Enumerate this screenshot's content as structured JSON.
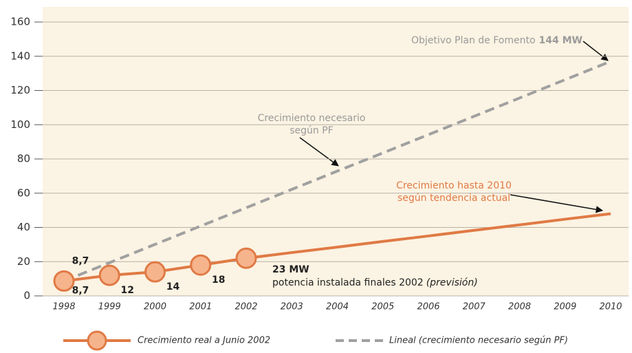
{
  "chart_data": {
    "type": "line",
    "categories": [
      "1998",
      "1999",
      "2000",
      "2001",
      "2002",
      "2003",
      "2004",
      "2005",
      "2006",
      "2007",
      "2008",
      "2009",
      "2010"
    ],
    "ylim": [
      0,
      160
    ],
    "yticks": [
      0,
      20,
      40,
      60,
      80,
      100,
      120,
      140,
      160
    ],
    "grid": true,
    "series": [
      {
        "name": "Crecimiento real a Junio 2002",
        "color": "#e07a45",
        "marker": true,
        "values": [
          8.7,
          12,
          14,
          18,
          22,
          null,
          null,
          null,
          null,
          null,
          null,
          null,
          null
        ],
        "value_labels": [
          "8,7",
          "12",
          "14",
          "18",
          null,
          null,
          null,
          null,
          null,
          null,
          null,
          null,
          null
        ]
      },
      {
        "color": "#e07a45",
        "marker": false,
        "values": [
          null,
          null,
          null,
          null,
          22,
          25.3,
          28.5,
          31.8,
          35,
          38.3,
          41.5,
          44.8,
          48
        ]
      },
      {
        "name": "Lineal (crecimiento necesario según PF)",
        "color": "#a0a0a0",
        "dashed": true,
        "marker": false,
        "values": [
          8.7,
          19.4,
          30.1,
          40.8,
          51.5,
          62.2,
          72.9,
          83.5,
          94.2,
          104.9,
          115.6,
          126.3,
          137
        ],
        "value_labels": [
          "8,7",
          null,
          null,
          null,
          null,
          null,
          null,
          null,
          null,
          null,
          null,
          null,
          null
        ]
      }
    ],
    "annotations": [
      {
        "text": "Objetivo Plan de Fomento",
        "bold": "144 MW"
      },
      {
        "lines": [
          "Crecimiento necesario",
          "según PF"
        ]
      },
      {
        "lines": [
          "Crecimiento hasta 2010",
          "según tendencia actual"
        ]
      },
      {
        "bold": "23 MW",
        "text": "potencia instalada finales 2002",
        "italic": "(previsión)"
      }
    ]
  }
}
